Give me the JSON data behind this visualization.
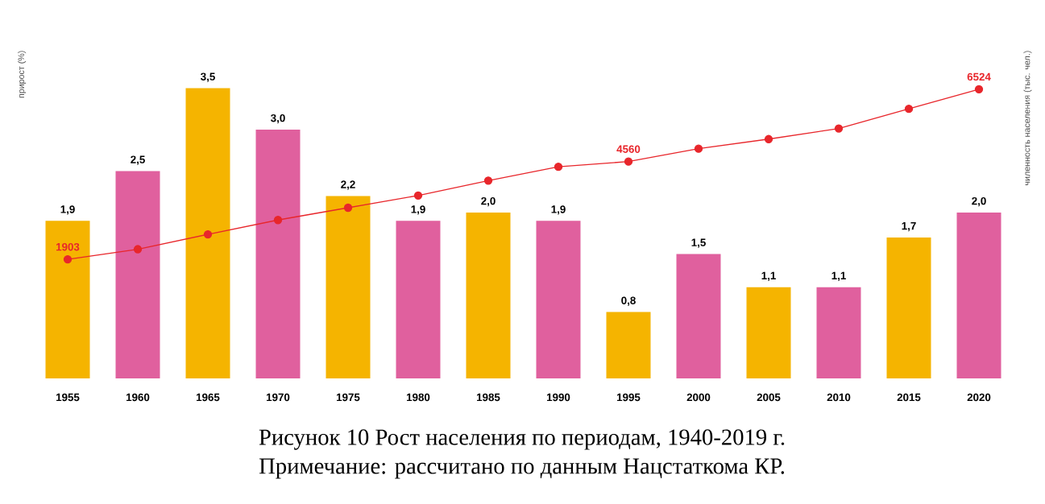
{
  "chart_data": {
    "type": "bar",
    "ylabel": "прирост (%)",
    "y2label": "чиленность населения (тыс. чел.)",
    "categories": [
      "1955",
      "1960",
      "1965",
      "1970",
      "1975",
      "1980",
      "1985",
      "1990",
      "1995",
      "2000",
      "2005",
      "2010",
      "2015",
      "2020"
    ],
    "tick_labels": "x",
    "series": [
      {
        "values": [
          1.9,
          2.5,
          3.5,
          3.0,
          2.2,
          1.9,
          2.0,
          1.9,
          0.8,
          1.5,
          1.1,
          1.1,
          1.7,
          2.0
        ],
        "colors": [
          "#f5b400",
          "#e0609e",
          "#f5b400",
          "#e0609e",
          "#f5b400",
          "#e0609e",
          "#f5b400",
          "#e0609e",
          "#f5b400",
          "#e0609e",
          "#f5b400",
          "#e0609e",
          "#f5b400",
          "#e0609e"
        ],
        "value_labels": [
          "1,9",
          "2,5",
          "3,5",
          "3,0",
          "2,2",
          "1,9",
          "2,0",
          "1,9",
          "0,8",
          "1,5",
          "1,1",
          "1,1",
          "1,7",
          "2,0"
        ]
      },
      {
        "type": "line",
        "axis": "y2",
        "color": "#e8262b",
        "marker": "circle",
        "values": [
          1903,
          2178,
          2582,
          2972,
          3305,
          3637,
          4042,
          4417,
          4560,
          4909,
          5169,
          5458,
          5992,
          6524
        ],
        "value_labels": [
          "1903",
          null,
          null,
          null,
          null,
          null,
          null,
          null,
          "4560",
          null,
          null,
          null,
          null,
          "6524"
        ]
      }
    ],
    "annotations": [
      "Рисунок 10 Рост населения по периодам, 1940-2019 г.",
      "Примечание: рассчитано по данным Нацстаткома КР."
    ]
  }
}
